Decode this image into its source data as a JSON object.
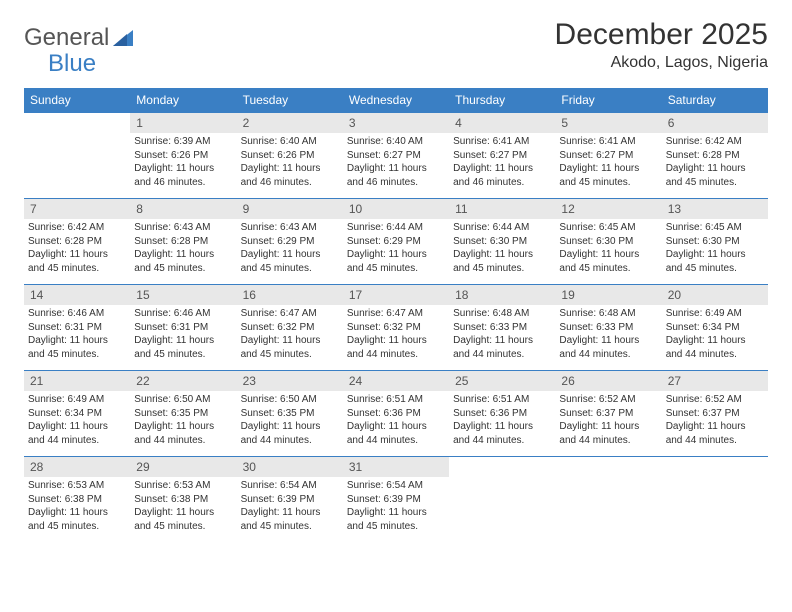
{
  "brand": {
    "text_a": "General",
    "text_b": "Blue"
  },
  "title": "December 2025",
  "location": "Akodo, Lagos, Nigeria",
  "weekdays": [
    "Sunday",
    "Monday",
    "Tuesday",
    "Wednesday",
    "Thursday",
    "Friday",
    "Saturday"
  ],
  "colors": {
    "header_bg": "#3a7fc4",
    "daynum_bg": "#e8e8e8",
    "rule": "#3a7fc4"
  },
  "weeks": [
    [
      {
        "empty": true
      },
      {
        "n": "1",
        "sr": "Sunrise: 6:39 AM",
        "ss": "Sunset: 6:26 PM",
        "dl": "Daylight: 11 hours and 46 minutes."
      },
      {
        "n": "2",
        "sr": "Sunrise: 6:40 AM",
        "ss": "Sunset: 6:26 PM",
        "dl": "Daylight: 11 hours and 46 minutes."
      },
      {
        "n": "3",
        "sr": "Sunrise: 6:40 AM",
        "ss": "Sunset: 6:27 PM",
        "dl": "Daylight: 11 hours and 46 minutes."
      },
      {
        "n": "4",
        "sr": "Sunrise: 6:41 AM",
        "ss": "Sunset: 6:27 PM",
        "dl": "Daylight: 11 hours and 46 minutes."
      },
      {
        "n": "5",
        "sr": "Sunrise: 6:41 AM",
        "ss": "Sunset: 6:27 PM",
        "dl": "Daylight: 11 hours and 45 minutes."
      },
      {
        "n": "6",
        "sr": "Sunrise: 6:42 AM",
        "ss": "Sunset: 6:28 PM",
        "dl": "Daylight: 11 hours and 45 minutes."
      }
    ],
    [
      {
        "n": "7",
        "sr": "Sunrise: 6:42 AM",
        "ss": "Sunset: 6:28 PM",
        "dl": "Daylight: 11 hours and 45 minutes."
      },
      {
        "n": "8",
        "sr": "Sunrise: 6:43 AM",
        "ss": "Sunset: 6:28 PM",
        "dl": "Daylight: 11 hours and 45 minutes."
      },
      {
        "n": "9",
        "sr": "Sunrise: 6:43 AM",
        "ss": "Sunset: 6:29 PM",
        "dl": "Daylight: 11 hours and 45 minutes."
      },
      {
        "n": "10",
        "sr": "Sunrise: 6:44 AM",
        "ss": "Sunset: 6:29 PM",
        "dl": "Daylight: 11 hours and 45 minutes."
      },
      {
        "n": "11",
        "sr": "Sunrise: 6:44 AM",
        "ss": "Sunset: 6:30 PM",
        "dl": "Daylight: 11 hours and 45 minutes."
      },
      {
        "n": "12",
        "sr": "Sunrise: 6:45 AM",
        "ss": "Sunset: 6:30 PM",
        "dl": "Daylight: 11 hours and 45 minutes."
      },
      {
        "n": "13",
        "sr": "Sunrise: 6:45 AM",
        "ss": "Sunset: 6:30 PM",
        "dl": "Daylight: 11 hours and 45 minutes."
      }
    ],
    [
      {
        "n": "14",
        "sr": "Sunrise: 6:46 AM",
        "ss": "Sunset: 6:31 PM",
        "dl": "Daylight: 11 hours and 45 minutes."
      },
      {
        "n": "15",
        "sr": "Sunrise: 6:46 AM",
        "ss": "Sunset: 6:31 PM",
        "dl": "Daylight: 11 hours and 45 minutes."
      },
      {
        "n": "16",
        "sr": "Sunrise: 6:47 AM",
        "ss": "Sunset: 6:32 PM",
        "dl": "Daylight: 11 hours and 45 minutes."
      },
      {
        "n": "17",
        "sr": "Sunrise: 6:47 AM",
        "ss": "Sunset: 6:32 PM",
        "dl": "Daylight: 11 hours and 44 minutes."
      },
      {
        "n": "18",
        "sr": "Sunrise: 6:48 AM",
        "ss": "Sunset: 6:33 PM",
        "dl": "Daylight: 11 hours and 44 minutes."
      },
      {
        "n": "19",
        "sr": "Sunrise: 6:48 AM",
        "ss": "Sunset: 6:33 PM",
        "dl": "Daylight: 11 hours and 44 minutes."
      },
      {
        "n": "20",
        "sr": "Sunrise: 6:49 AM",
        "ss": "Sunset: 6:34 PM",
        "dl": "Daylight: 11 hours and 44 minutes."
      }
    ],
    [
      {
        "n": "21",
        "sr": "Sunrise: 6:49 AM",
        "ss": "Sunset: 6:34 PM",
        "dl": "Daylight: 11 hours and 44 minutes."
      },
      {
        "n": "22",
        "sr": "Sunrise: 6:50 AM",
        "ss": "Sunset: 6:35 PM",
        "dl": "Daylight: 11 hours and 44 minutes."
      },
      {
        "n": "23",
        "sr": "Sunrise: 6:50 AM",
        "ss": "Sunset: 6:35 PM",
        "dl": "Daylight: 11 hours and 44 minutes."
      },
      {
        "n": "24",
        "sr": "Sunrise: 6:51 AM",
        "ss": "Sunset: 6:36 PM",
        "dl": "Daylight: 11 hours and 44 minutes."
      },
      {
        "n": "25",
        "sr": "Sunrise: 6:51 AM",
        "ss": "Sunset: 6:36 PM",
        "dl": "Daylight: 11 hours and 44 minutes."
      },
      {
        "n": "26",
        "sr": "Sunrise: 6:52 AM",
        "ss": "Sunset: 6:37 PM",
        "dl": "Daylight: 11 hours and 44 minutes."
      },
      {
        "n": "27",
        "sr": "Sunrise: 6:52 AM",
        "ss": "Sunset: 6:37 PM",
        "dl": "Daylight: 11 hours and 44 minutes."
      }
    ],
    [
      {
        "n": "28",
        "sr": "Sunrise: 6:53 AM",
        "ss": "Sunset: 6:38 PM",
        "dl": "Daylight: 11 hours and 45 minutes."
      },
      {
        "n": "29",
        "sr": "Sunrise: 6:53 AM",
        "ss": "Sunset: 6:38 PM",
        "dl": "Daylight: 11 hours and 45 minutes."
      },
      {
        "n": "30",
        "sr": "Sunrise: 6:54 AM",
        "ss": "Sunset: 6:39 PM",
        "dl": "Daylight: 11 hours and 45 minutes."
      },
      {
        "n": "31",
        "sr": "Sunrise: 6:54 AM",
        "ss": "Sunset: 6:39 PM",
        "dl": "Daylight: 11 hours and 45 minutes."
      },
      {
        "empty": true
      },
      {
        "empty": true
      },
      {
        "empty": true
      }
    ]
  ]
}
